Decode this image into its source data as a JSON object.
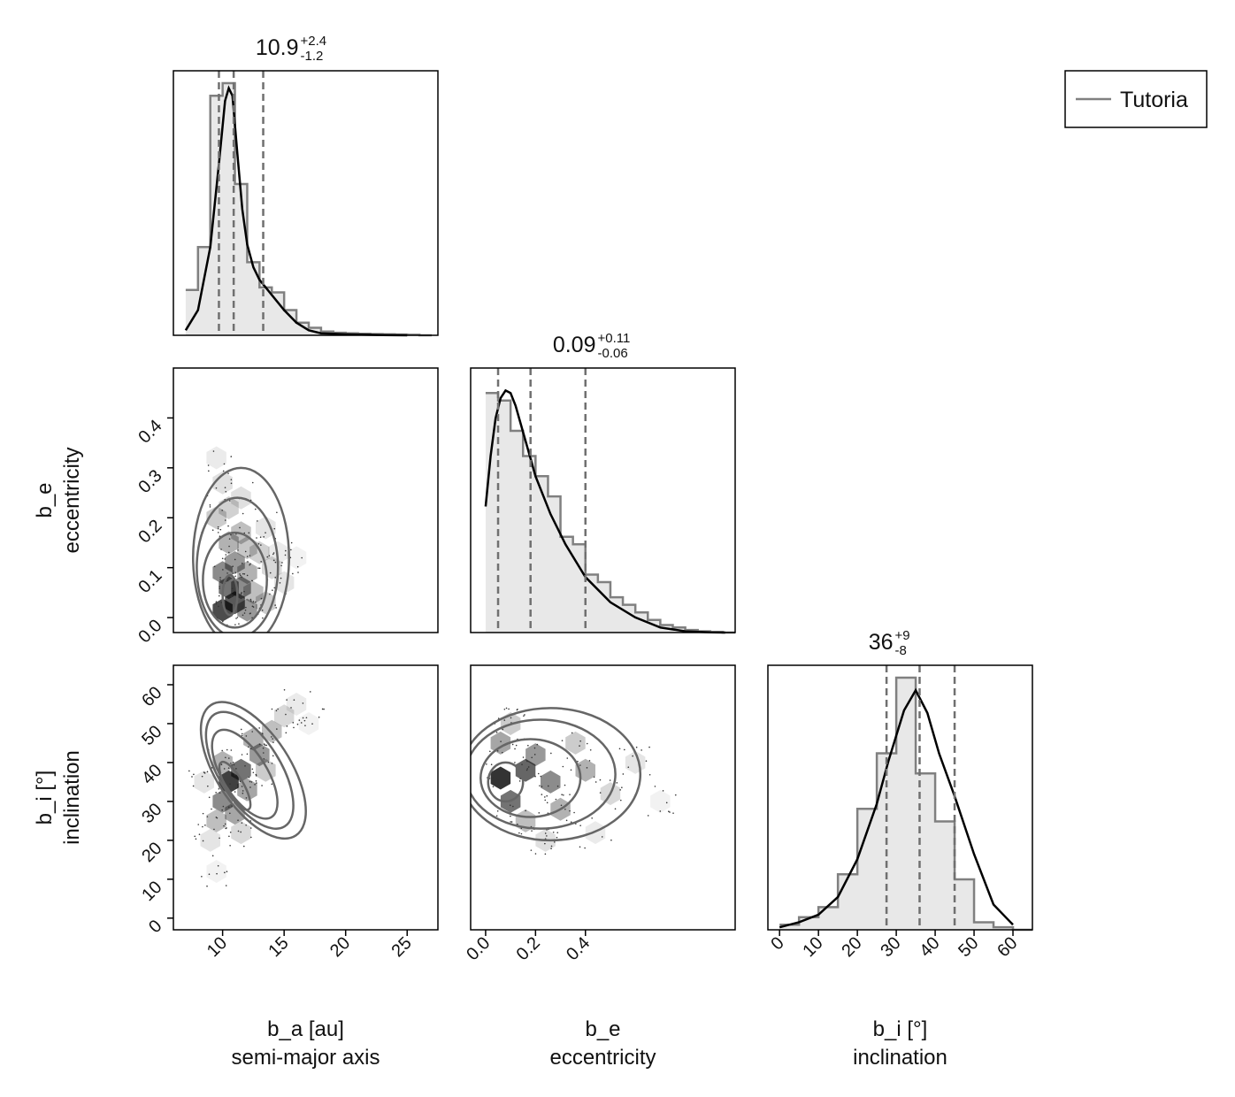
{
  "legend": {
    "label": "Tutoria",
    "line_color": "#808080"
  },
  "colors": {
    "hist_fill": "#e8e8e8",
    "hist_step": "#808080",
    "kde": "#000000",
    "quantile": "#707070",
    "contour": "#666666",
    "hex": "#000000"
  },
  "chart_data": {
    "type": "corner",
    "variables": [
      {
        "key": "b_a",
        "label_line1": "b_a [au]",
        "label_line2": "semi-major axis",
        "range": [
          6.0,
          27.5
        ],
        "ticks": [
          10,
          15,
          20,
          25
        ]
      },
      {
        "key": "b_e",
        "label_line1": "b_e",
        "label_line2": "eccentricity",
        "range": [
          -0.03,
          0.5
        ],
        "ticks": [
          0.0,
          0.1,
          0.2,
          0.3,
          0.4
        ]
      },
      {
        "key": "b_i",
        "label_line1": "b_i [°]",
        "label_line2": "inclination",
        "range": [
          -3,
          65
        ],
        "ticks": [
          0,
          10,
          20,
          30,
          40,
          50,
          60
        ]
      }
    ],
    "bottom_tick_labels": {
      "b_a": [
        "10",
        "15",
        "20",
        "25"
      ],
      "b_e": [
        "0.0",
        "0.2",
        "0.4"
      ],
      "b_i": [
        "0",
        "10",
        "20",
        "30",
        "40",
        "50",
        "60"
      ]
    },
    "left_tick_labels": {
      "b_e": [
        "0.0",
        "0.1",
        "0.2",
        "0.3",
        "0.4"
      ],
      "b_i": [
        "0",
        "10",
        "20",
        "30",
        "40",
        "50",
        "60"
      ]
    },
    "summaries": [
      {
        "var": "b_a",
        "median": "10.9",
        "plus": "+2.4",
        "minus": "-1.2",
        "quantiles": [
          9.7,
          10.9,
          13.3
        ]
      },
      {
        "var": "b_e",
        "median": "0.09",
        "plus": "+0.11",
        "minus": "-0.06",
        "quantiles": [
          0.025,
          0.09,
          0.2
        ]
      },
      {
        "var": "b_i",
        "median": "36",
        "plus": "+9",
        "minus": "-8",
        "quantiles": [
          27.5,
          36,
          45
        ]
      }
    ],
    "histograms": [
      {
        "var": "b_a",
        "edges": [
          7,
          8,
          9,
          10,
          11,
          12,
          13,
          14,
          15,
          16,
          17,
          18,
          19,
          20,
          21,
          22,
          23,
          24,
          25,
          26,
          27
        ],
        "counts": [
          0.18,
          0.35,
          0.95,
          1.0,
          0.6,
          0.29,
          0.19,
          0.17,
          0.1,
          0.05,
          0.03,
          0.015,
          0.01,
          0.008,
          0.006,
          0.005,
          0.004,
          0.003,
          0.002,
          0.0
        ]
      },
      {
        "var": "b_e",
        "edges": [
          0.0,
          0.025,
          0.05,
          0.075,
          0.1,
          0.125,
          0.15,
          0.175,
          0.2,
          0.225,
          0.25,
          0.275,
          0.3,
          0.325,
          0.35,
          0.375,
          0.4,
          0.425,
          0.45,
          0.475,
          0.5
        ],
        "counts": [
          0.95,
          0.92,
          0.8,
          0.7,
          0.62,
          0.54,
          0.38,
          0.35,
          0.23,
          0.2,
          0.14,
          0.11,
          0.08,
          0.05,
          0.03,
          0.02,
          0.01,
          0.005,
          0.002,
          0.0
        ]
      },
      {
        "var": "b_i",
        "edges": [
          0,
          5,
          10,
          15,
          20,
          25,
          30,
          35,
          40,
          45,
          50,
          55,
          60,
          65
        ],
        "counts": [
          0.02,
          0.05,
          0.09,
          0.22,
          0.48,
          0.7,
          1.0,
          0.62,
          0.43,
          0.2,
          0.03,
          0.01,
          0.0
        ]
      }
    ],
    "kde": [
      {
        "var": "b_a",
        "x": [
          7.0,
          8.0,
          9.0,
          9.7,
          10.2,
          10.5,
          10.8,
          11.2,
          11.6,
          12.0,
          12.5,
          13.0,
          14.0,
          15.0,
          16.0,
          17.0,
          18.0,
          20.0,
          23.0,
          25.0
        ],
        "y": [
          0.02,
          0.1,
          0.35,
          0.68,
          0.93,
          0.98,
          0.95,
          0.72,
          0.5,
          0.36,
          0.27,
          0.22,
          0.16,
          0.1,
          0.05,
          0.02,
          0.008,
          0.004,
          0.001,
          0.0
        ]
      },
      {
        "var": "b_e",
        "x": [
          0.0,
          0.01,
          0.02,
          0.03,
          0.04,
          0.05,
          0.06,
          0.08,
          0.1,
          0.13,
          0.16,
          0.2,
          0.25,
          0.3,
          0.35,
          0.4,
          0.45,
          0.48
        ],
        "y": [
          0.5,
          0.7,
          0.85,
          0.93,
          0.96,
          0.95,
          0.9,
          0.76,
          0.62,
          0.47,
          0.35,
          0.22,
          0.12,
          0.06,
          0.02,
          0.005,
          0.001,
          0.0
        ]
      },
      {
        "var": "b_i",
        "x": [
          0,
          5,
          10,
          15,
          20,
          25,
          28,
          32,
          35,
          38,
          41,
          45,
          50,
          55,
          60
        ],
        "y": [
          0.01,
          0.03,
          0.06,
          0.13,
          0.28,
          0.5,
          0.67,
          0.87,
          0.95,
          0.86,
          0.7,
          0.53,
          0.3,
          0.1,
          0.02
        ]
      }
    ],
    "hexbins": [
      {
        "x": "b_a",
        "y": "b_e",
        "cells": [
          [
            10.0,
            0.015,
            0.7
          ],
          [
            11.0,
            0.03,
            0.65
          ],
          [
            12.0,
            0.015,
            0.4
          ],
          [
            10.5,
            0.06,
            0.55
          ],
          [
            11.5,
            0.06,
            0.45
          ],
          [
            10.0,
            0.09,
            0.45
          ],
          [
            11.0,
            0.11,
            0.4
          ],
          [
            12.0,
            0.09,
            0.3
          ],
          [
            12.5,
            0.05,
            0.25
          ],
          [
            13.5,
            0.03,
            0.2
          ],
          [
            10.5,
            0.15,
            0.3
          ],
          [
            11.5,
            0.17,
            0.25
          ],
          [
            9.5,
            0.2,
            0.2
          ],
          [
            10.5,
            0.22,
            0.18
          ],
          [
            11.5,
            0.24,
            0.12
          ],
          [
            10.0,
            0.27,
            0.12
          ],
          [
            9.5,
            0.32,
            0.08
          ],
          [
            13.0,
            0.13,
            0.18
          ],
          [
            14.0,
            0.1,
            0.15
          ],
          [
            15.0,
            0.07,
            0.1
          ],
          [
            14.5,
            0.13,
            0.08
          ],
          [
            13.5,
            0.18,
            0.1
          ],
          [
            16.0,
            0.12,
            0.05
          ],
          [
            12.0,
            0.14,
            0.22
          ]
        ],
        "contours": [
          {
            "cx": 11.0,
            "cy": 0.075,
            "rx": 2.6,
            "ry": 0.095
          },
          {
            "cx": 11.2,
            "cy": 0.1,
            "rx": 3.3,
            "ry": 0.14
          },
          {
            "cx": 11.5,
            "cy": 0.12,
            "rx": 3.9,
            "ry": 0.18
          },
          {
            "cx": 10.6,
            "cy": 0.045,
            "rx": 0.6,
            "ry": 0.04
          }
        ]
      },
      {
        "x": "b_a",
        "y": "b_i",
        "cells": [
          [
            10.5,
            35,
            0.75
          ],
          [
            11.5,
            38,
            0.55
          ],
          [
            10.0,
            30,
            0.45
          ],
          [
            12.0,
            33,
            0.35
          ],
          [
            13.0,
            42,
            0.4
          ],
          [
            12.5,
            46,
            0.3
          ],
          [
            14.0,
            48,
            0.25
          ],
          [
            9.5,
            25,
            0.25
          ],
          [
            11.0,
            27,
            0.35
          ],
          [
            10.0,
            40,
            0.3
          ],
          [
            13.5,
            38,
            0.2
          ],
          [
            15.0,
            52,
            0.15
          ],
          [
            9.0,
            20,
            0.1
          ],
          [
            11.5,
            22,
            0.15
          ],
          [
            8.5,
            35,
            0.1
          ],
          [
            16.0,
            55,
            0.08
          ],
          [
            9.5,
            12,
            0.05
          ],
          [
            17.0,
            50,
            0.05
          ]
        ],
        "contours": [
          {
            "cx": 11.0,
            "cy": 34,
            "rx": 0.7,
            "ry": 7,
            "rot": -30
          },
          {
            "cx": 11.8,
            "cy": 37,
            "rx": 1.8,
            "ry": 13,
            "rot": -32
          },
          {
            "cx": 12.2,
            "cy": 38,
            "rx": 2.5,
            "ry": 17,
            "rot": -32
          },
          {
            "cx": 12.5,
            "cy": 38,
            "rx": 3.0,
            "ry": 20,
            "rot": -33
          }
        ]
      },
      {
        "x": "b_e",
        "y": "b_i",
        "cells": [
          [
            0.03,
            36,
            0.8
          ],
          [
            0.08,
            38,
            0.6
          ],
          [
            0.05,
            30,
            0.55
          ],
          [
            0.13,
            35,
            0.45
          ],
          [
            0.1,
            42,
            0.4
          ],
          [
            0.03,
            45,
            0.35
          ],
          [
            0.15,
            28,
            0.3
          ],
          [
            0.2,
            38,
            0.3
          ],
          [
            0.08,
            25,
            0.25
          ],
          [
            0.18,
            45,
            0.2
          ],
          [
            0.25,
            32,
            0.15
          ],
          [
            0.05,
            50,
            0.2
          ],
          [
            0.12,
            20,
            0.12
          ],
          [
            0.3,
            40,
            0.1
          ],
          [
            0.22,
            22,
            0.08
          ],
          [
            0.35,
            30,
            0.05
          ]
        ],
        "contours": [
          {
            "cx": 0.04,
            "cy": 35,
            "rx": 0.035,
            "ry": 5
          },
          {
            "cx": 0.09,
            "cy": 36,
            "rx": 0.1,
            "ry": 10
          },
          {
            "cx": 0.11,
            "cy": 37,
            "rx": 0.15,
            "ry": 14
          },
          {
            "cx": 0.13,
            "cy": 37,
            "rx": 0.18,
            "ry": 17
          }
        ]
      }
    ]
  }
}
